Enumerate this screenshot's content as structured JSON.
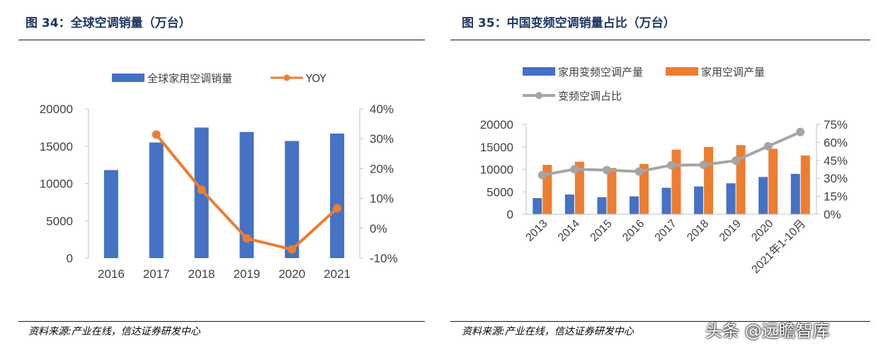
{
  "left": {
    "title": "图 34：全球空调销量（万台）",
    "source": "资料来源:产业在线，信达证券研发中心"
  },
  "right": {
    "title": "图 35：中国变频空调销量占比（万台）",
    "source": "资料来源:产业在线，信达证券研发中心"
  },
  "watermark": "头条 @远瞻智库",
  "colors": {
    "blue": "#4472c4",
    "orange": "#ed7d31",
    "gray": "#a5a5a5",
    "title": "#1f3864"
  },
  "chart_data": [
    {
      "type": "bar",
      "title": "全球空调销量（万台）",
      "categories": [
        "2016",
        "2017",
        "2018",
        "2019",
        "2020",
        "2021"
      ],
      "series": [
        {
          "name": "全球家用空调销量",
          "kind": "bar",
          "axis": "left",
          "values": [
            11800,
            15500,
            17500,
            16900,
            15700,
            16700
          ]
        },
        {
          "name": "YOY",
          "kind": "line",
          "axis": "right",
          "values": [
            null,
            31.4,
            12.9,
            -3.4,
            -7.1,
            6.7
          ]
        }
      ],
      "ylim": [
        0,
        20000
      ],
      "yticks": [
        "0",
        "5000",
        "10000",
        "15000",
        "20000"
      ],
      "y2lim": [
        -10,
        40
      ],
      "y2ticks": [
        "-10%",
        "0%",
        "10%",
        "20%",
        "30%",
        "40%"
      ],
      "legend": "top"
    },
    {
      "type": "bar",
      "title": "中国变频空调销量占比（万台）",
      "categories": [
        "2013",
        "2014",
        "2015",
        "2016",
        "2017",
        "2018",
        "2019",
        "2020",
        "2021年1-10月"
      ],
      "series": [
        {
          "name": "家用变频空调产量",
          "kind": "bar",
          "axis": "left",
          "values": [
            3600,
            4400,
            3800,
            4000,
            5900,
            6200,
            6900,
            8300,
            9000
          ]
        },
        {
          "name": "家用空调产量",
          "kind": "bar",
          "axis": "left",
          "values": [
            11000,
            11700,
            10300,
            11200,
            14400,
            15000,
            15400,
            14600,
            13100
          ]
        },
        {
          "name": "变频空调占比",
          "kind": "line",
          "axis": "right",
          "values": [
            32.7,
            37.6,
            36.9,
            35.7,
            41.0,
            41.3,
            44.8,
            56.8,
            68.7
          ]
        }
      ],
      "ylim": [
        0,
        20000
      ],
      "yticks": [
        "0",
        "5000",
        "10000",
        "15000",
        "20000"
      ],
      "y2lim": [
        0,
        75
      ],
      "y2ticks": [
        "0%",
        "15%",
        "30%",
        "45%",
        "60%",
        "75%"
      ],
      "legend": "top"
    }
  ]
}
